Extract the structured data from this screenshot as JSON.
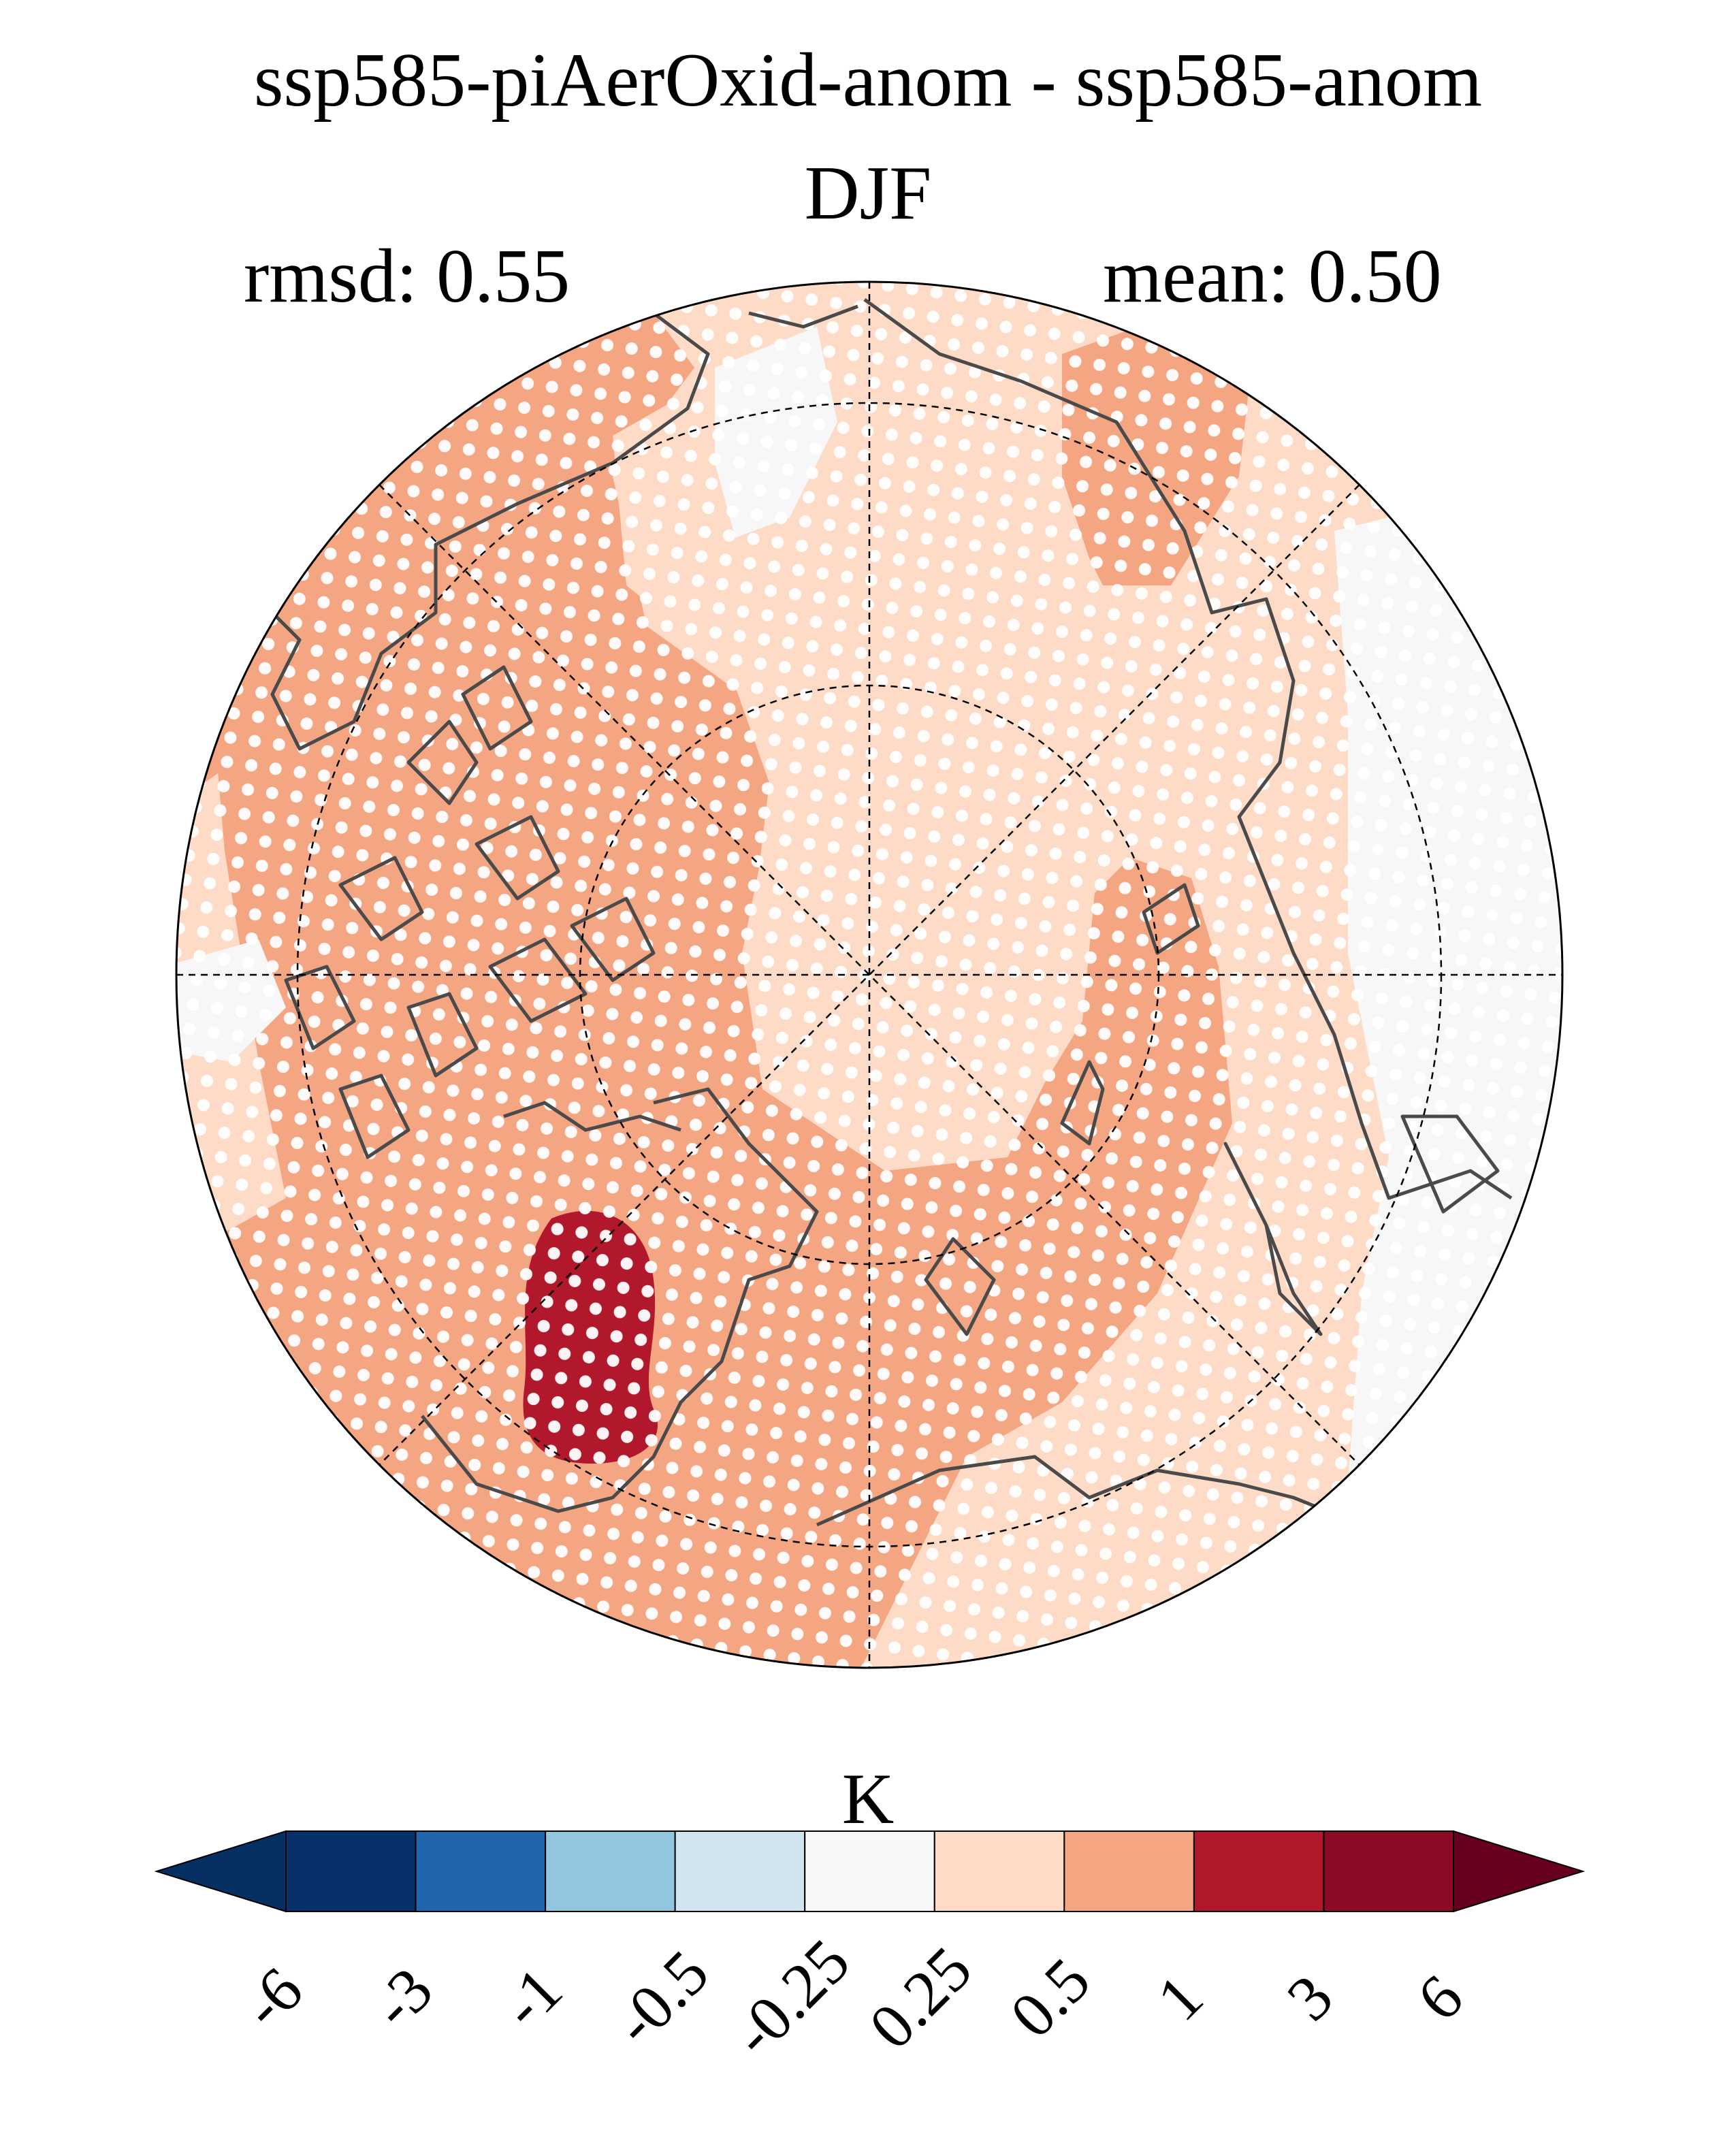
{
  "title": "ssp585-piAerOxid-anom - ssp585-anom",
  "season": "DJF",
  "rmsd_label": "rmsd: 0.55",
  "mean_label": "mean: 0.50",
  "colorbar": {
    "units": "K",
    "levels": [
      "-6",
      "-3",
      "-1",
      "-0.5",
      "-0.25",
      "0.25",
      "0.5",
      "1",
      "3",
      "6"
    ],
    "colors": [
      "#053061",
      "#08306b",
      "#2166ac",
      "#92c5de",
      "#d1e5f0",
      "#f7f7f7",
      "#fddbc7",
      "#f4a582",
      "#b2182b",
      "#8b0a26",
      "#67001f"
    ],
    "extend": "both"
  },
  "map": {
    "projection": "north-polar-stereographic",
    "variable": "temperature anomaly difference",
    "stippling": "white dots",
    "dominant_color": "#f4a582",
    "background_color": "#fddbc7",
    "coastline_color": "#4a4a4a",
    "graticule": "dashed"
  }
}
